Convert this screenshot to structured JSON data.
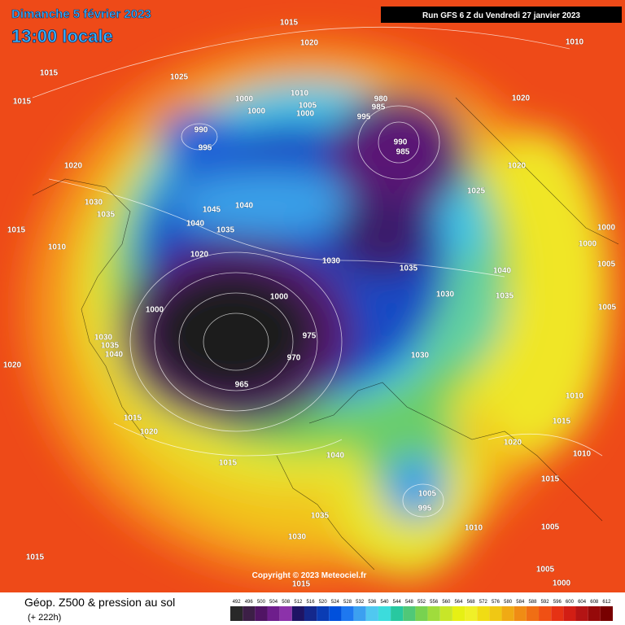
{
  "header": {
    "date": "Dimanche 5 février 2023",
    "time": "13:00 locale",
    "run": "Run GFS 6 Z du Vendredi 27 janvier 2023"
  },
  "copyright": "Copyright © 2023 Meteociel.fr",
  "footer": {
    "title": "Géop. Z500 & pression au sol",
    "lead": "(+ 222h)"
  },
  "legend": {
    "values": [
      492,
      496,
      500,
      504,
      508,
      512,
      516,
      520,
      524,
      528,
      532,
      536,
      540,
      544,
      548,
      552,
      556,
      560,
      564,
      568,
      572,
      576,
      580,
      584,
      588,
      592,
      596,
      600,
      604,
      608,
      612
    ],
    "colors": [
      "#282828",
      "#3c1f46",
      "#501464",
      "#6e1e8c",
      "#8c32aa",
      "#1e1464",
      "#14288c",
      "#0a3cb4",
      "#0050dc",
      "#1e78f0",
      "#3ca0f0",
      "#50c8f0",
      "#3cdcdc",
      "#28c8a0",
      "#50c878",
      "#78d250",
      "#a0dc3c",
      "#c8e628",
      "#e6f014",
      "#f0f028",
      "#f0dc14",
      "#f0c814",
      "#f0aa14",
      "#f08c14",
      "#f06e14",
      "#f05014",
      "#e63214",
      "#d21e14",
      "#b41414",
      "#960a0a",
      "#780000"
    ]
  },
  "isobars": [
    "1015",
    "1020",
    "1025",
    "1015",
    "1015",
    "1010",
    "1020",
    "1010",
    "1005",
    "1000",
    "1000",
    "1000",
    "990",
    "995",
    "980",
    "985",
    "995",
    "990",
    "985",
    "1020",
    "1020",
    "1025",
    "1030",
    "1035",
    "1045",
    "1040",
    "1040",
    "1035",
    "1020",
    "1030",
    "1035",
    "1030",
    "1040",
    "1035",
    "1000",
    "1000",
    "1005",
    "1005",
    "1000",
    "1000",
    "975",
    "970",
    "965",
    "1030",
    "1010",
    "1015",
    "1020",
    "1010",
    "1015",
    "1015",
    "1015",
    "1020",
    "1040",
    "1035",
    "1030",
    "1005",
    "995",
    "1010",
    "1005",
    "1005",
    "1000",
    "1015",
    "1015",
    "1020",
    "1010",
    "1015",
    "1030",
    "1035",
    "1040"
  ]
}
